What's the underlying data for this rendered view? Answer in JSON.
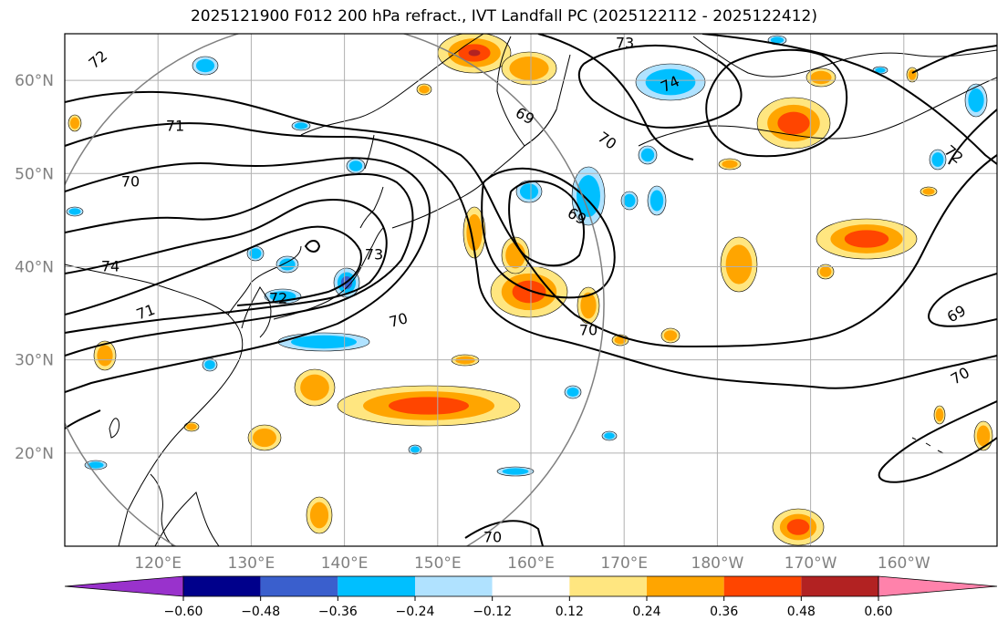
{
  "title": "2025121900 F012 200 hPa refract., IVT Landfall PC (2025122112 - 2025122412)",
  "chart_data": {
    "type": "heatmap",
    "title": "2025121900 F012 200 hPa refract., IVT Landfall PC (2025122112 - 2025122412)",
    "map_projection": "plate-carree",
    "lon_range_deg_east": [
      110,
      210
    ],
    "lat_range_deg": [
      10,
      65
    ],
    "grid": true,
    "lat_ticks": [
      "20°N",
      "30°N",
      "40°N",
      "50°N",
      "60°N"
    ],
    "lat_tick_values": [
      20,
      30,
      40,
      50,
      60
    ],
    "lon_ticks": [
      "120°E",
      "130°E",
      "140°E",
      "150°E",
      "160°E",
      "170°E",
      "180°W",
      "170°W",
      "160°W"
    ],
    "lon_tick_values": [
      120,
      130,
      140,
      150,
      160,
      170,
      180,
      190,
      200
    ],
    "colorbar": {
      "orientation": "horizontal",
      "extend": "both",
      "ticks": [
        "−0.60",
        "−0.48",
        "−0.36",
        "−0.24",
        "−0.12",
        "0.12",
        "0.24",
        "0.36",
        "0.48",
        "0.60"
      ],
      "colors": [
        "#9932cc",
        "#00008b",
        "#3a5fcd",
        "#00bfff",
        "#b0e2ff",
        "#ffffff",
        "#ffe680",
        "#ffa500",
        "#ff4500",
        "#b22222",
        "#ff82ab"
      ]
    },
    "contour_labels": [
      "72",
      "71",
      "70",
      "74",
      "73",
      "72",
      "71",
      "70",
      "69",
      "74",
      "73",
      "70",
      "72",
      "69",
      "70",
      "70",
      "69",
      "70"
    ],
    "circle_center_deg": [
      137.5,
      36
    ],
    "circle_radius_deg": 31
  }
}
